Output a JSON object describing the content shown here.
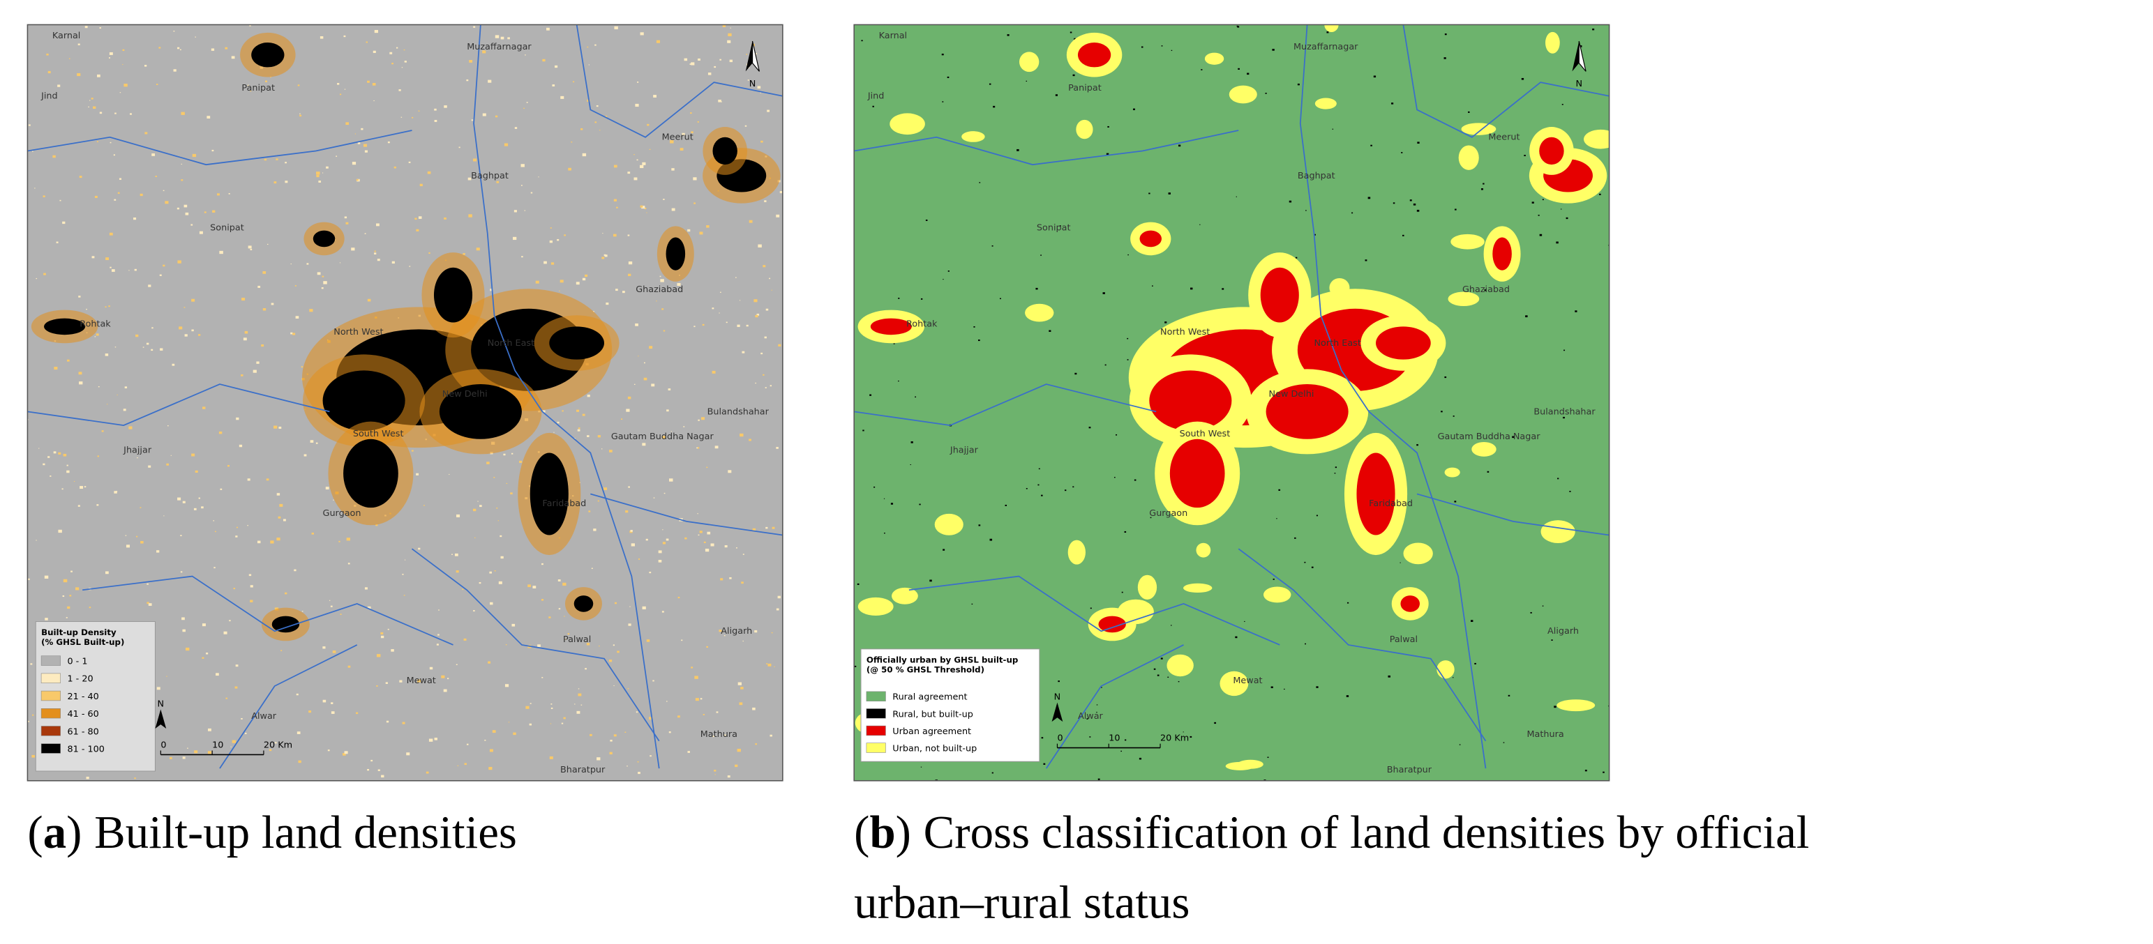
{
  "panels": [
    {
      "place_labels": [
        "Karnal",
        "Muzaffarnagar",
        "Panipat",
        "Jind",
        "Meerut",
        "Baghpat",
        "Sonipat",
        "Ghaziabad",
        "Rohtak",
        "North West",
        "North East",
        "New Delhi",
        "Bulandshahar",
        "South West",
        "Gautam Buddha Nagar",
        "Jhajjar",
        "Gurgaon",
        "Faridabad",
        "Aligarh",
        "Palwal",
        "Mewat",
        "Alwar",
        "Mathura",
        "Bharatpur"
      ],
      "north": "N",
      "legend": {
        "title": [
          "Built-up Density",
          "(% GHSL Built-up)"
        ],
        "items": [
          {
            "label": "0 - 1",
            "color": "#b2b2b2"
          },
          {
            "label": "1 - 20",
            "color": "#fdebc0"
          },
          {
            "label": "21 - 40",
            "color": "#f8c96a"
          },
          {
            "label": "41 - 60",
            "color": "#e38f1c"
          },
          {
            "label": "61 - 80",
            "color": "#a8380b"
          },
          {
            "label": "81 - 100",
            "color": "#000000"
          }
        ],
        "north": "N",
        "scale": [
          "0",
          "10",
          "20 Km"
        ]
      },
      "caption": {
        "open": "(",
        "label": "a",
        "close": ")",
        "lines": [
          "Built-up land densities"
        ]
      }
    },
    {
      "place_labels": [
        "Karnal",
        "Muzaffarnagar",
        "Panipat",
        "Jind",
        "Meerut",
        "Baghpat",
        "Sonipat",
        "Ghaziabad",
        "Rohtak",
        "North West",
        "North East",
        "New Delhi",
        "Bulandshahar",
        "South West",
        "Gautam Buddha Nagar",
        "Jhajjar",
        "Gurgaon",
        "Faridabad",
        "Aligarh",
        "Palwal",
        "Mewat",
        "Alwar",
        "Mathura",
        "Bharatpur"
      ],
      "north": "N",
      "legend": {
        "title": [
          "Officially urban by GHSL built-up",
          "(@ 50 % GHSL Threshold)"
        ],
        "items": [
          {
            "label": "Rural agreement",
            "color": "#6db36d"
          },
          {
            "label": "Rural, but built-up",
            "color": "#000000"
          },
          {
            "label": "Urban agreement",
            "color": "#e60000"
          },
          {
            "label": "Urban, not built-up",
            "color": "#ffff66"
          }
        ],
        "north": "N",
        "scale": [
          "0",
          "10",
          "20 Km"
        ]
      },
      "caption": {
        "open": "(",
        "label": "b",
        "close": ")",
        "lines": [
          "Cross classification of land densities by official",
          "urban–rural status"
        ]
      }
    }
  ]
}
